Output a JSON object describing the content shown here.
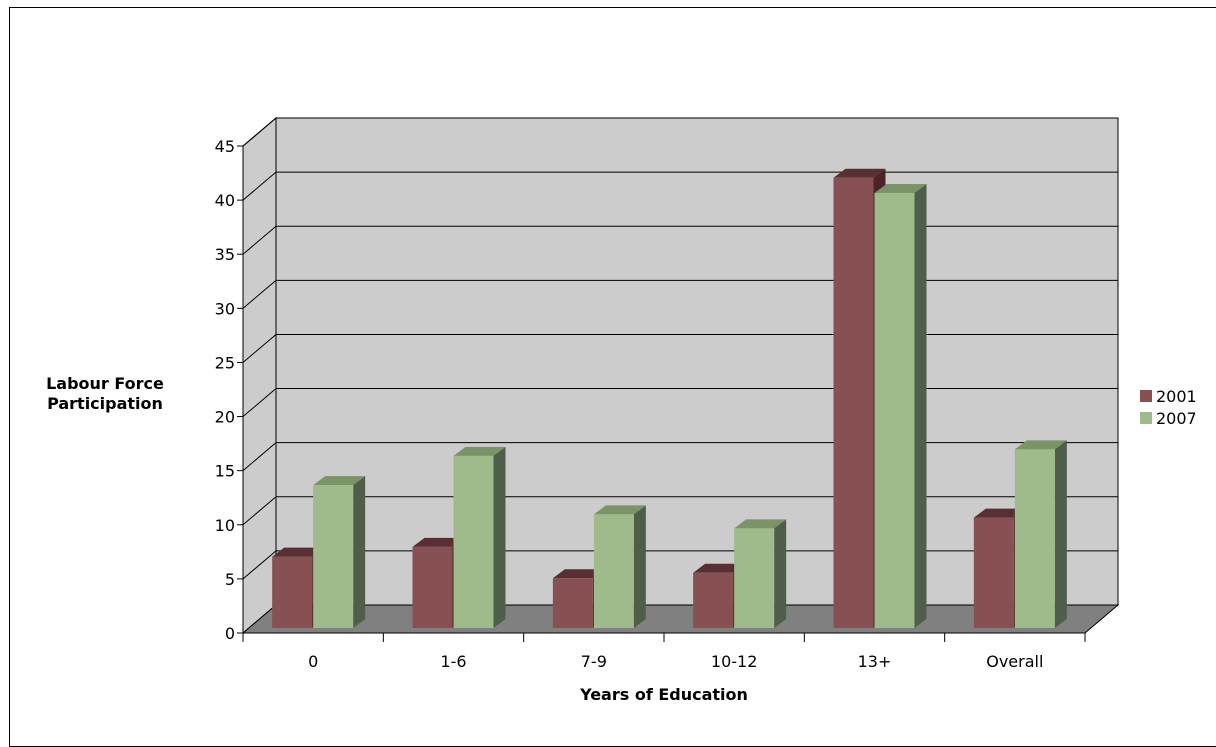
{
  "chart_data": {
    "type": "bar",
    "title": "",
    "xlabel": "Years of Education",
    "ylabel_lines": [
      "Labour Force",
      "Participation"
    ],
    "categories": [
      "0",
      "1-6",
      "7-9",
      "10-12",
      "13+",
      "Overall"
    ],
    "series": [
      {
        "name": "2001",
        "values": [
          6.6,
          7.5,
          4.6,
          5.1,
          41.6,
          10.2
        ],
        "colors": {
          "front": "#875053",
          "top": "#5a2f33",
          "side": "#4a2427"
        }
      },
      {
        "name": "2007",
        "values": [
          13.2,
          15.9,
          10.5,
          9.2,
          40.2,
          16.5
        ],
        "colors": {
          "front": "#9fbb8b",
          "top": "#7a9468",
          "side": "#4f5e4a"
        }
      }
    ],
    "yticks": [
      "0",
      "5",
      "10",
      "15",
      "20",
      "25",
      "30",
      "35",
      "40",
      "45"
    ],
    "ylim": [
      0,
      45
    ],
    "grid": true,
    "legend": "right",
    "colors": {
      "wall": "#cccccc",
      "floor": "#808080",
      "grid": "#000000"
    }
  }
}
